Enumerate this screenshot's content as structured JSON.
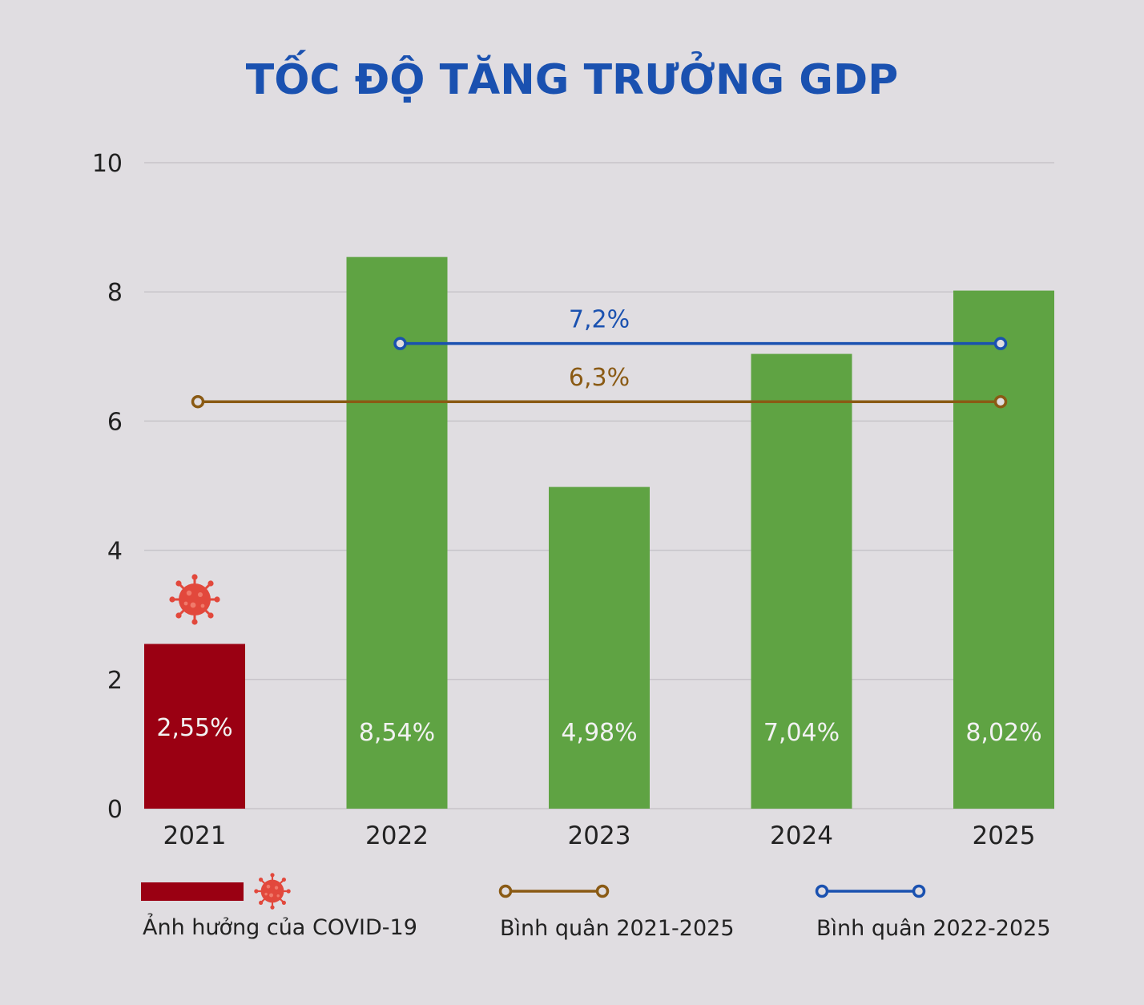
{
  "chart_data": {
    "type": "bar",
    "title": "TỐC ĐỘ TĂNG TRƯỞNG GDP",
    "categories": [
      "2021",
      "2022",
      "2023",
      "2024",
      "2025"
    ],
    "values": [
      2.55,
      8.54,
      4.98,
      7.04,
      8.02
    ],
    "value_labels": [
      "2,55%",
      "8,54%",
      "4,98%",
      "7,04%",
      "8,02%"
    ],
    "bar_colors": [
      "#9a0012",
      "#5fa343",
      "#5fa343",
      "#5fa343",
      "#5fa343"
    ],
    "ylim": [
      0,
      10
    ],
    "yticks": [
      "0",
      "2",
      "4",
      "6",
      "8",
      "10"
    ],
    "grid": true,
    "averages": [
      {
        "name": "Bình quân 2021-2025",
        "value": 6.3,
        "label": "6,3%",
        "from": "2021",
        "to": "2025",
        "color": "#8a5a14"
      },
      {
        "name": "Bình quân 2022-2025",
        "value": 7.2,
        "label": "7,2%",
        "from": "2022",
        "to": "2025",
        "color": "#1a51b0"
      }
    ],
    "legend": {
      "position": "bottom",
      "covid_label": "Ảnh hưởng của COVID-19",
      "covid_color": "#9a0012"
    },
    "icon": "virus-icon"
  }
}
